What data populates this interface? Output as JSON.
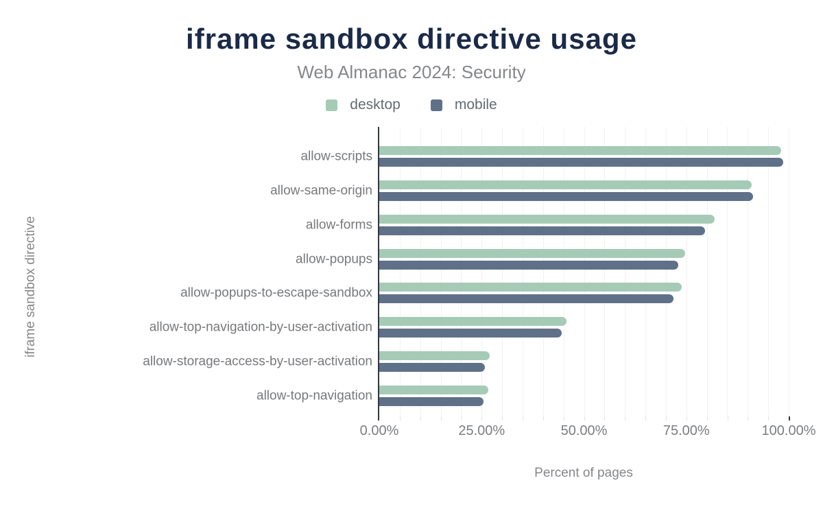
{
  "chart_data": {
    "type": "bar",
    "orientation": "horizontal",
    "title": "iframe sandbox directive usage",
    "subtitle": "Web Almanac 2024: Security",
    "xlabel": "Percent of pages",
    "ylabel": "iframe sandbox directive",
    "xlim": [
      0,
      100
    ],
    "grid": true,
    "grid_step_percent": 5,
    "legend_position": "top",
    "x_ticks": [
      {
        "label": "0.00%",
        "value": 0
      },
      {
        "label": "25.00%",
        "value": 25
      },
      {
        "label": "50.00%",
        "value": 50
      },
      {
        "label": "75.00%",
        "value": 75
      },
      {
        "label": "100.00%",
        "value": 100
      }
    ],
    "categories": [
      "allow-scripts",
      "allow-same-origin",
      "allow-forms",
      "allow-popups",
      "allow-popups-to-escape-sandbox",
      "allow-top-navigation-by-user-activation",
      "allow-storage-access-by-user-activation",
      "allow-top-navigation"
    ],
    "series": [
      {
        "name": "desktop",
        "color": "#a5cbb7",
        "values": [
          98.2,
          91.0,
          81.9,
          74.7,
          73.8,
          45.7,
          26.9,
          26.6
        ]
      },
      {
        "name": "mobile",
        "color": "#5f7089",
        "values": [
          98.7,
          91.3,
          79.6,
          73.0,
          71.8,
          44.6,
          25.8,
          25.5
        ]
      }
    ]
  },
  "colors": {
    "title": "#1b2a48",
    "subtitle": "#85878a",
    "axis_line": "#32363e",
    "gridline": "#f2f2f2",
    "tick_text": "#7b7d80",
    "category_text": "#77797c",
    "legend_text": "#636b75",
    "background": "#ffffff"
  }
}
